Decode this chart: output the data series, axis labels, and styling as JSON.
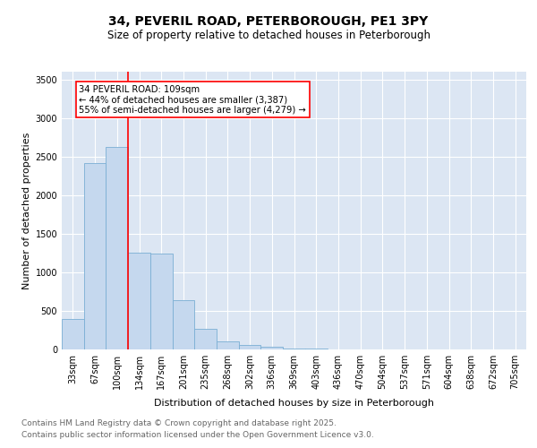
{
  "title": "34, PEVERIL ROAD, PETERBOROUGH, PE1 3PY",
  "subtitle": "Size of property relative to detached houses in Peterborough",
  "xlabel": "Distribution of detached houses by size in Peterborough",
  "ylabel": "Number of detached properties",
  "bin_labels": [
    "33sqm",
    "67sqm",
    "100sqm",
    "134sqm",
    "167sqm",
    "201sqm",
    "235sqm",
    "268sqm",
    "302sqm",
    "336sqm",
    "369sqm",
    "403sqm",
    "436sqm",
    "470sqm",
    "504sqm",
    "537sqm",
    "571sqm",
    "604sqm",
    "638sqm",
    "672sqm",
    "705sqm"
  ],
  "bar_values": [
    400,
    2420,
    2620,
    1250,
    1240,
    640,
    270,
    100,
    55,
    30,
    15,
    8,
    5,
    3,
    2,
    1,
    0,
    0,
    0,
    0,
    0
  ],
  "bar_color": "#c5d8ee",
  "bar_edge_color": "#7aafd4",
  "background_color": "#dce6f3",
  "grid_color": "#ffffff",
  "red_line_x": 2.5,
  "annotation_text": "34 PEVERIL ROAD: 109sqm\n← 44% of detached houses are smaller (3,387)\n55% of semi-detached houses are larger (4,279) →",
  "ylim": [
    0,
    3600
  ],
  "yticks": [
    0,
    500,
    1000,
    1500,
    2000,
    2500,
    3000,
    3500
  ],
  "footnote1": "Contains HM Land Registry data © Crown copyright and database right 2025.",
  "footnote2": "Contains public sector information licensed under the Open Government Licence v3.0.",
  "title_fontsize": 10,
  "subtitle_fontsize": 8.5,
  "footnote_fontsize": 6.5,
  "axis_label_fontsize": 8,
  "tick_fontsize": 7
}
